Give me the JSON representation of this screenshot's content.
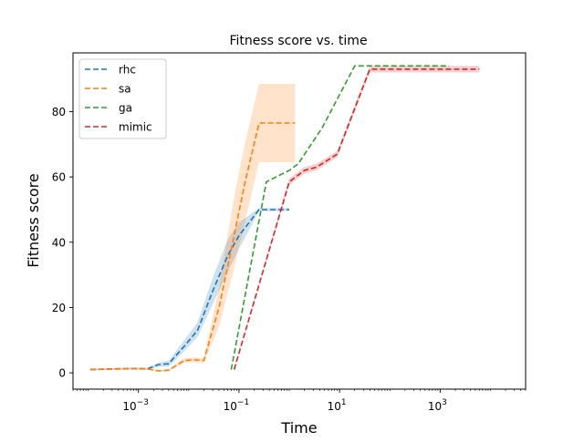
{
  "chart_data": {
    "type": "line",
    "title": "Fitness score vs. time",
    "xlabel": "Time",
    "ylabel": "Fitness score",
    "x_scale": "log",
    "xlim": [
      5e-05,
      50000
    ],
    "ylim": [
      -5,
      98
    ],
    "x_ticks": [
      {
        "value": 0.001,
        "base": "10",
        "exp": "−3"
      },
      {
        "value": 0.1,
        "base": "10",
        "exp": "−1"
      },
      {
        "value": 10,
        "base": "10",
        "exp": "1"
      },
      {
        "value": 1000,
        "base": "10",
        "exp": "3"
      }
    ],
    "y_ticks": [
      0,
      20,
      40,
      60,
      80
    ],
    "grid": false,
    "legend_position": "top-left",
    "series": [
      {
        "name": "rhc",
        "color": "#1f77b4",
        "x": [
          0.00011,
          0.0003,
          0.0008,
          0.0015,
          0.0025,
          0.004,
          0.008,
          0.015,
          0.03,
          0.06,
          0.1,
          0.25,
          0.5,
          1.0
        ],
        "y": [
          1,
          1.2,
          1.3,
          1.2,
          2.5,
          2.8,
          8,
          13,
          25,
          36,
          42,
          50,
          50,
          50
        ],
        "y_lower": [
          0.7,
          0.9,
          1.0,
          0.9,
          1.8,
          1.9,
          6.5,
          11,
          21,
          31,
          38,
          49.5,
          49.5,
          49.5
        ],
        "y_upper": [
          1.3,
          1.5,
          1.6,
          1.5,
          3.2,
          3.7,
          9.8,
          15.5,
          29,
          41,
          46,
          50.5,
          50.5,
          50.5
        ]
      },
      {
        "name": "sa",
        "color": "#ff7f0e",
        "x": [
          0.00011,
          0.0003,
          0.0008,
          0.0015,
          0.0025,
          0.004,
          0.008,
          0.012,
          0.02,
          0.04,
          0.08,
          0.13,
          0.25,
          0.6,
          1.3
        ],
        "y": [
          1,
          1.1,
          1.3,
          1.2,
          0.6,
          0.8,
          3.7,
          4,
          3.8,
          20,
          42,
          58,
          76.5,
          76.5,
          76.5
        ],
        "y_lower": [
          0.8,
          0.9,
          1.0,
          0.9,
          0.3,
          0.5,
          3.0,
          3.3,
          3.0,
          14,
          32,
          46,
          64.5,
          64.5,
          64.5
        ],
        "y_upper": [
          1.2,
          1.3,
          1.6,
          1.5,
          0.9,
          1.1,
          4.4,
          4.7,
          4.6,
          26,
          54,
          70,
          88.5,
          88.5,
          88.5
        ]
      },
      {
        "name": "ga",
        "color": "#2ca02c",
        "x": [
          0.07,
          0.35,
          1.0,
          1.5,
          4.5,
          20,
          1500
        ],
        "y": [
          1,
          58.5,
          62,
          64,
          75,
          94,
          94
        ],
        "y_lower": [
          0.8,
          58,
          61,
          63.5,
          74,
          94,
          94
        ],
        "y_upper": [
          1.2,
          59,
          63,
          64.5,
          76,
          94,
          94
        ],
        "band": false
      },
      {
        "name": "mimic",
        "color": "#d62728",
        "x": [
          0.08,
          1.0,
          2.0,
          3.5,
          9,
          40,
          6000
        ],
        "y": [
          1,
          58.5,
          62,
          63,
          67,
          93,
          93
        ],
        "y_lower": [
          0.8,
          57.5,
          61,
          62,
          66,
          92,
          92
        ],
        "y_upper": [
          1.2,
          59.5,
          63,
          64,
          68,
          94,
          94
        ]
      }
    ]
  }
}
